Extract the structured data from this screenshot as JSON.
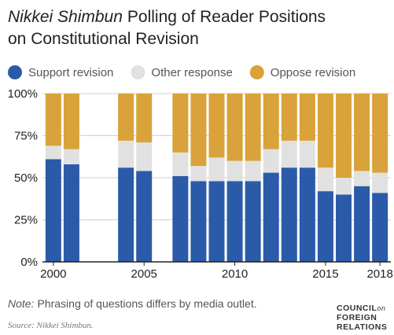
{
  "chart_data": {
    "type": "stacked_bar",
    "title": [
      "Nikkei Shimbun",
      "Polling of Reader Positions",
      "on Constitutional Revision"
    ],
    "x": [
      2000,
      2001,
      2004,
      2005,
      2007,
      2008,
      2009,
      2010,
      2011,
      2012,
      2013,
      2014,
      2015,
      2016,
      2017,
      2018
    ],
    "series": [
      {
        "name": "Support revision",
        "color": "#2b5ba8",
        "values": [
          61,
          58,
          56,
          54,
          51,
          48,
          48,
          48,
          48,
          53,
          56,
          56,
          42,
          40,
          45,
          41
        ]
      },
      {
        "name": "Other response",
        "color": "#e1e1e1",
        "values": [
          8,
          9,
          16,
          17,
          14,
          9,
          14,
          12,
          12,
          14,
          16,
          16,
          14,
          10,
          9,
          12
        ]
      },
      {
        "name": "Oppose revision",
        "color": "#d9a23a",
        "values": [
          31,
          33,
          28,
          29,
          35,
          43,
          38,
          40,
          40,
          33,
          28,
          28,
          44,
          50,
          46,
          47
        ]
      }
    ],
    "xlim": [
      1999.4,
      2018.6
    ],
    "xticks": [
      2000,
      2005,
      2010,
      2015,
      2018
    ],
    "ylim": [
      0,
      100
    ],
    "yticks": [
      {
        "value": 0,
        "label": "0%"
      },
      {
        "value": 25,
        "label": "25%"
      },
      {
        "value": 50,
        "label": "50%"
      },
      {
        "value": 75,
        "label": "75%"
      },
      {
        "value": 100,
        "label": "100%"
      }
    ],
    "grid": true,
    "note_label": "Note:",
    "note": "Phrasing of questions differs by media outlet.",
    "source": "Source: Nikkei Shimbun.",
    "logo": [
      "COUNCIL",
      "on",
      "FOREIGN",
      "RELATIONS"
    ]
  }
}
